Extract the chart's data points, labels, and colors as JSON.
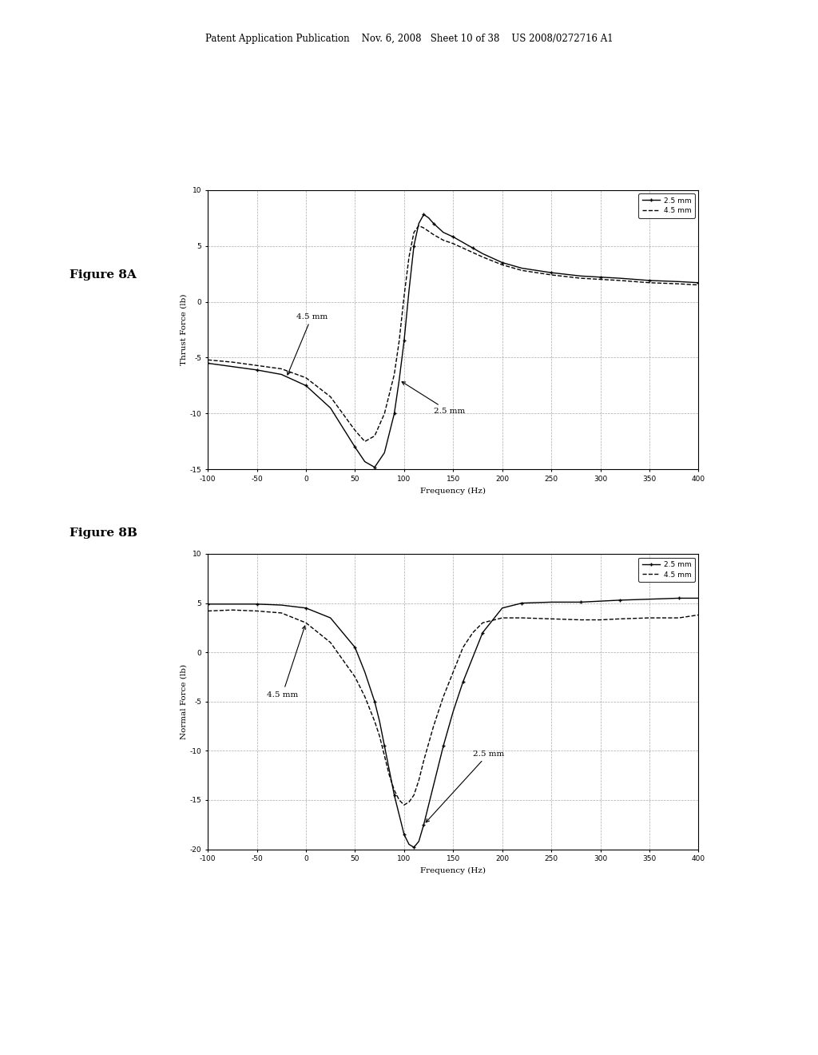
{
  "fig_width": 10.24,
  "fig_height": 13.2,
  "background_color": "#ffffff",
  "header_text": "Patent Application Publication    Nov. 6, 2008   Sheet 10 of 38    US 2008/0272716 A1",
  "fig8A_label": "Figure 8A",
  "fig8B_label": "Figure 8B",
  "xlabel": "Frequency (Hz)",
  "ylabel_A": "Thrust Force (lb)",
  "ylabel_B": "Normal Force (lb)",
  "xlim": [
    -100,
    400
  ],
  "xticks": [
    -100,
    -50,
    0,
    50,
    100,
    150,
    200,
    250,
    300,
    350,
    400
  ],
  "ylim_A": [
    -15,
    10
  ],
  "yticks_A": [
    -15,
    -10,
    -5,
    0,
    5,
    10
  ],
  "ylim_B": [
    -20,
    10
  ],
  "yticks_B": [
    -20,
    -15,
    -10,
    -5,
    0,
    5,
    10
  ],
  "legend_2p5": "2.5 mm",
  "legend_4p5": "4.5 mm",
  "annotation_A_4p5": "4.5 mm",
  "annotation_A_2p5": "2.5 mm",
  "annotation_B_4p5": "4.5 mm",
  "annotation_B_2p5": "2.5 mm",
  "line_color_2p5": "#000000",
  "line_color_4p5": "#000000",
  "grid_color": "#888888",
  "figA_2p5_x": [
    -100,
    -75,
    -50,
    -25,
    0,
    25,
    50,
    60,
    70,
    80,
    90,
    95,
    100,
    105,
    110,
    115,
    120,
    125,
    130,
    140,
    150,
    160,
    170,
    180,
    200,
    220,
    250,
    280,
    300,
    320,
    350,
    380,
    400
  ],
  "figA_2p5_y": [
    -5.5,
    -5.8,
    -6.1,
    -6.5,
    -7.5,
    -9.5,
    -13.0,
    -14.3,
    -14.8,
    -13.5,
    -10.0,
    -7.0,
    -3.5,
    1.0,
    5.0,
    7.0,
    7.8,
    7.5,
    7.0,
    6.2,
    5.8,
    5.3,
    4.8,
    4.3,
    3.5,
    3.0,
    2.6,
    2.3,
    2.2,
    2.1,
    1.9,
    1.8,
    1.7
  ],
  "figA_4p5_x": [
    -100,
    -75,
    -50,
    -25,
    0,
    25,
    50,
    60,
    70,
    80,
    90,
    95,
    100,
    105,
    110,
    115,
    120,
    125,
    130,
    140,
    150,
    160,
    170,
    180,
    200,
    220,
    250,
    280,
    300,
    320,
    350,
    380,
    400
  ],
  "figA_4p5_y": [
    -5.2,
    -5.4,
    -5.7,
    -6.0,
    -6.8,
    -8.5,
    -11.5,
    -12.5,
    -12.0,
    -10.0,
    -6.5,
    -3.5,
    0.5,
    4.0,
    6.2,
    6.8,
    6.6,
    6.3,
    6.0,
    5.5,
    5.2,
    4.8,
    4.4,
    4.0,
    3.3,
    2.8,
    2.4,
    2.1,
    2.0,
    1.9,
    1.7,
    1.6,
    1.5
  ],
  "figB_2p5_x": [
    -100,
    -75,
    -50,
    -25,
    0,
    25,
    50,
    60,
    70,
    75,
    80,
    85,
    90,
    95,
    100,
    105,
    110,
    115,
    120,
    130,
    140,
    150,
    160,
    170,
    180,
    200,
    220,
    250,
    280,
    300,
    320,
    350,
    380,
    400
  ],
  "figB_2p5_y": [
    4.9,
    4.9,
    4.9,
    4.8,
    4.5,
    3.5,
    0.5,
    -2.0,
    -5.0,
    -7.0,
    -9.5,
    -12.0,
    -14.5,
    -16.5,
    -18.5,
    -19.5,
    -19.8,
    -19.2,
    -17.5,
    -13.5,
    -9.5,
    -6.0,
    -3.0,
    -0.5,
    2.0,
    4.5,
    5.0,
    5.1,
    5.1,
    5.2,
    5.3,
    5.4,
    5.5,
    5.5
  ],
  "figB_4p5_x": [
    -100,
    -75,
    -50,
    -25,
    0,
    25,
    50,
    60,
    70,
    75,
    80,
    85,
    90,
    95,
    100,
    105,
    110,
    115,
    120,
    130,
    140,
    150,
    160,
    170,
    180,
    200,
    220,
    250,
    280,
    300,
    320,
    350,
    380,
    400
  ],
  "figB_4p5_y": [
    4.2,
    4.3,
    4.2,
    4.0,
    3.0,
    1.0,
    -2.5,
    -4.5,
    -7.0,
    -8.5,
    -10.5,
    -12.5,
    -14.0,
    -15.0,
    -15.5,
    -15.2,
    -14.5,
    -13.0,
    -11.0,
    -7.5,
    -4.5,
    -2.0,
    0.5,
    2.0,
    3.0,
    3.5,
    3.5,
    3.4,
    3.3,
    3.3,
    3.4,
    3.5,
    3.5,
    3.8
  ]
}
